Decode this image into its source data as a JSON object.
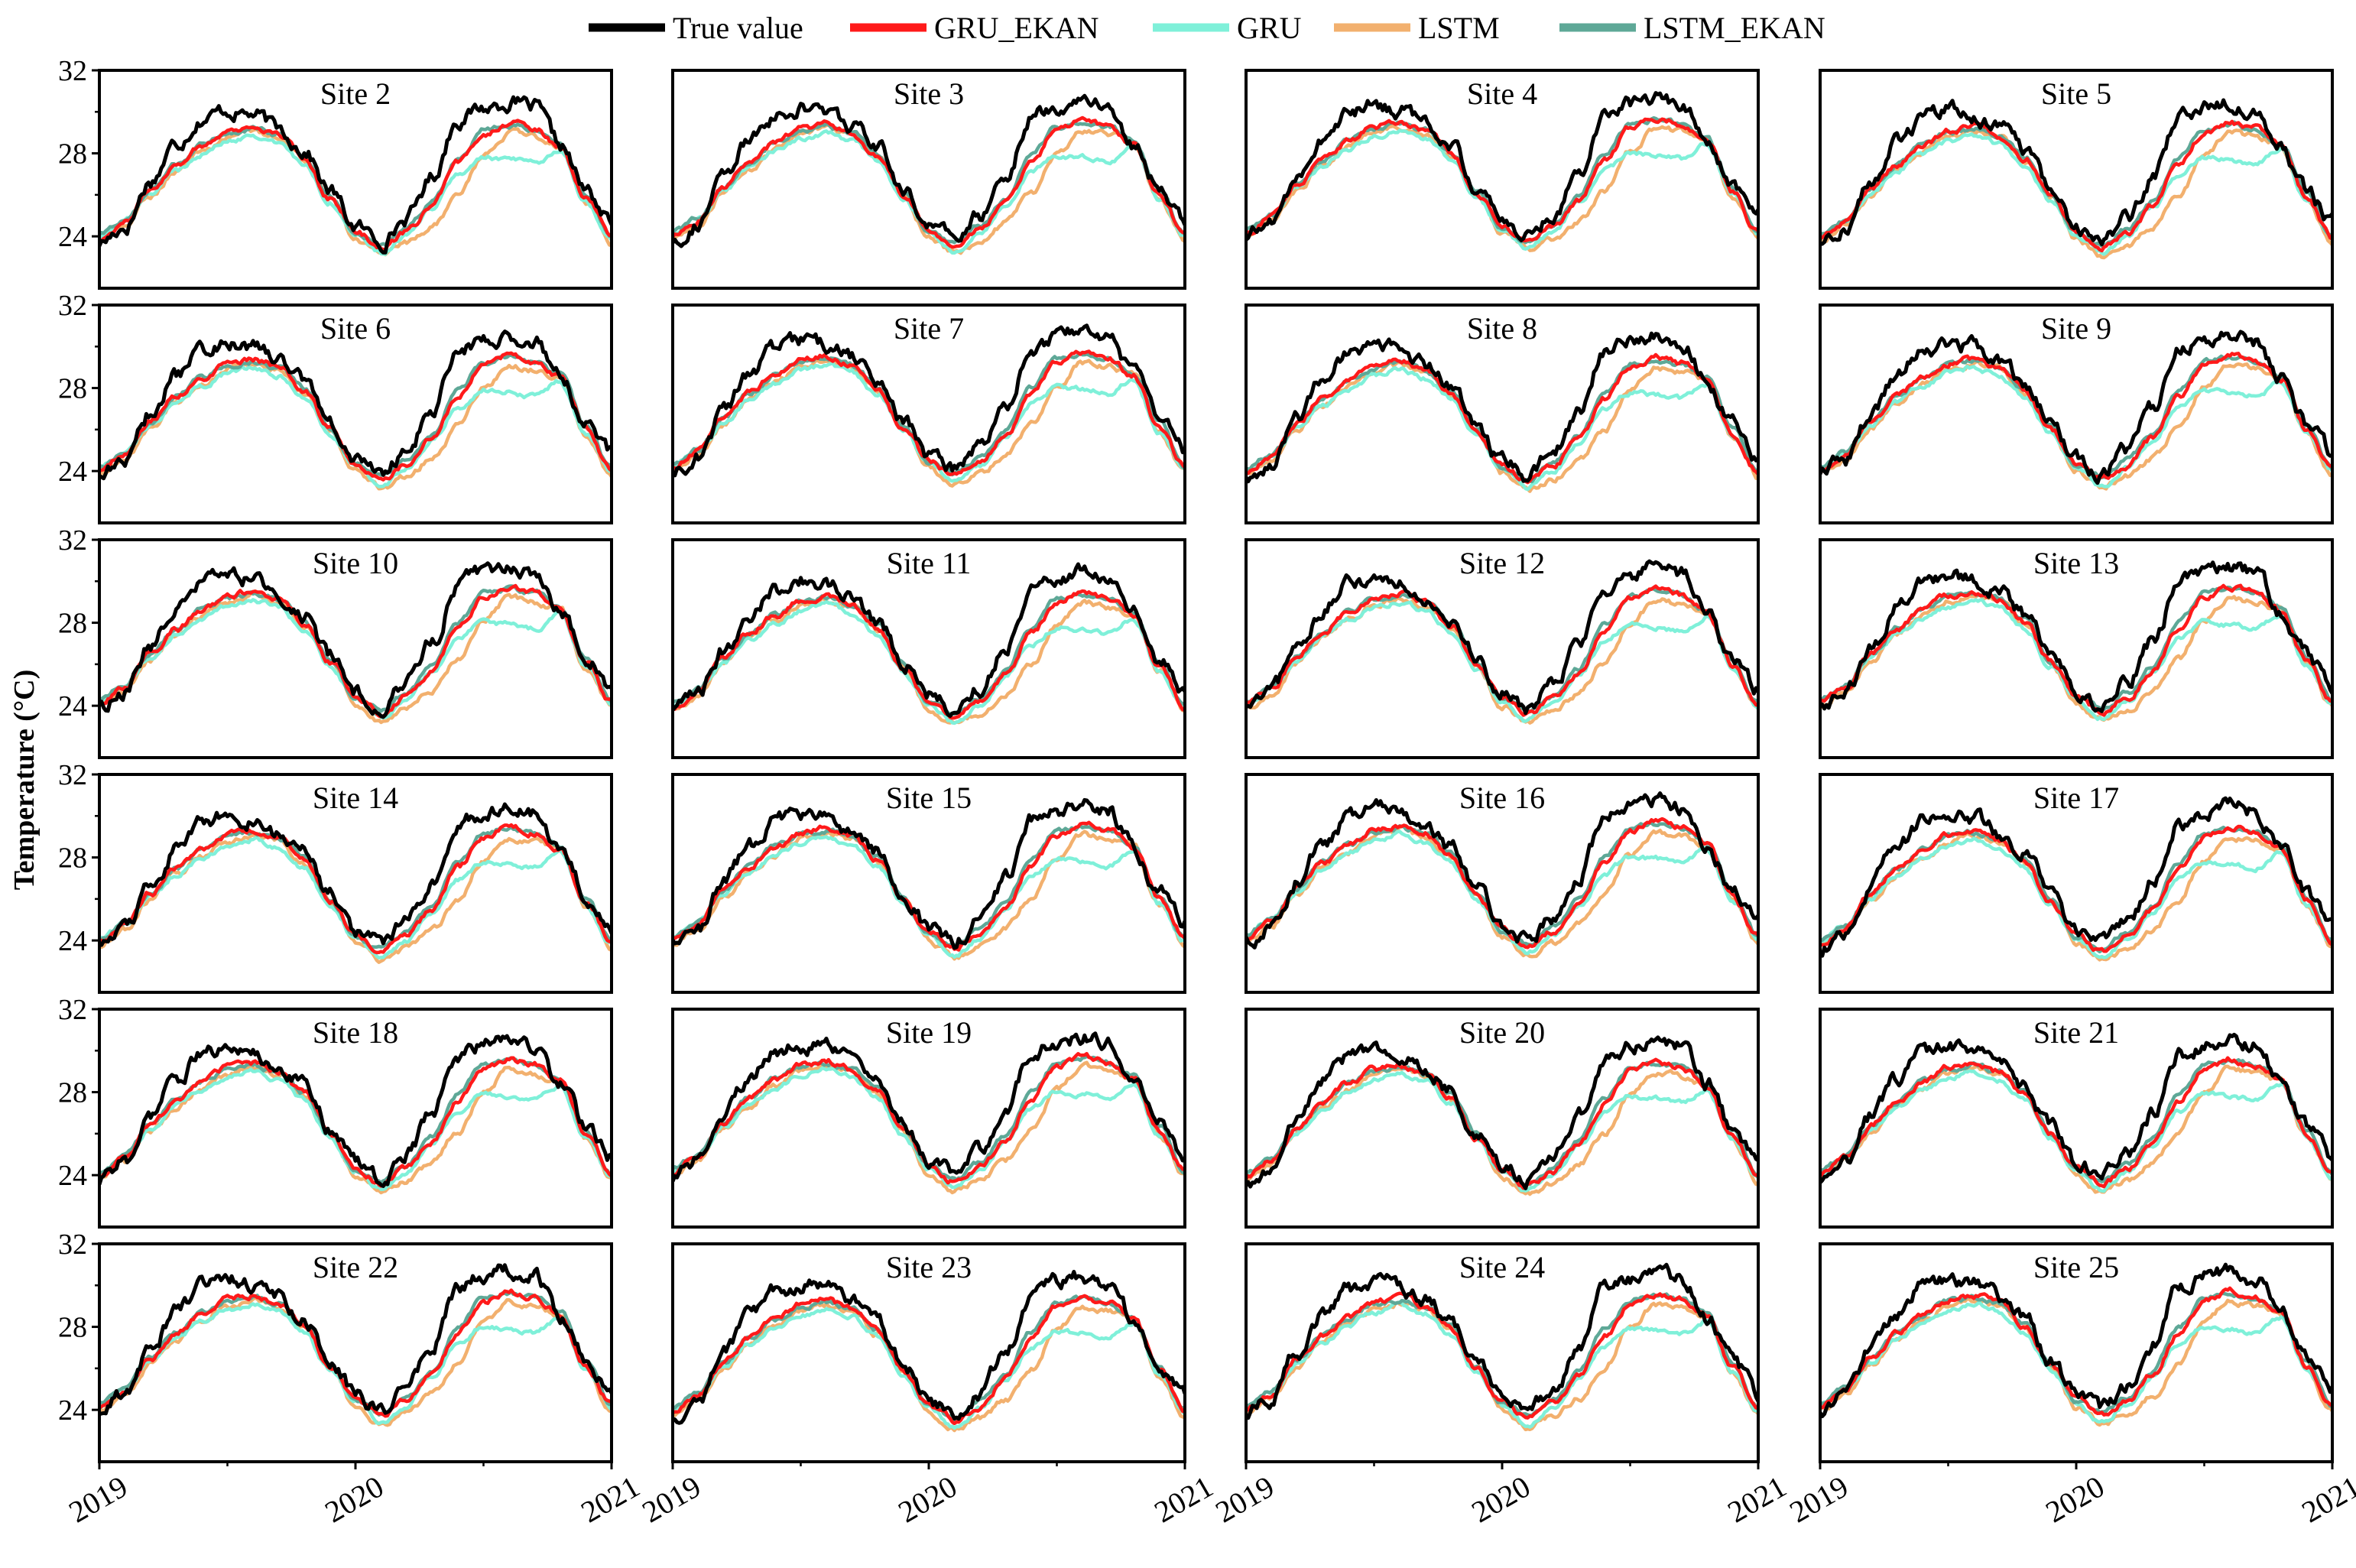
{
  "legend": {
    "entries": [
      {
        "name": "True value",
        "color": "#000000"
      },
      {
        "name": "GRU_EKAN",
        "color": "#ff1a1a"
      },
      {
        "name": "GRU",
        "color": "#7ff0d9"
      },
      {
        "name": "LSTM",
        "color": "#f2b06e"
      },
      {
        "name": "LSTM_EKAN",
        "color": "#5ea897"
      }
    ]
  },
  "chart_data": {
    "type": "line",
    "title": "",
    "xlabel": "",
    "ylabel": "Temperature (°C)",
    "ylabel_prefix": "Temperature (",
    "ylabel_unit": "°C",
    "ylabel_suffix": ")",
    "xlim": [
      2019,
      2021
    ],
    "ylim": [
      21.5,
      32
    ],
    "y_ticks": [
      24,
      28,
      32
    ],
    "x_ticks": [
      2019,
      2020,
      2021
    ],
    "x_tick_labels": [
      "2019",
      "2020",
      "2021"
    ],
    "panel_prefix": "Site",
    "sites": [
      "2",
      "3",
      "4",
      "5",
      "6",
      "7",
      "8",
      "9",
      "10",
      "11",
      "12",
      "13",
      "14",
      "15",
      "16",
      "17",
      "18",
      "19",
      "20",
      "21",
      "22",
      "23",
      "24",
      "25"
    ],
    "grid": false,
    "legend_position": "top-center",
    "series": [
      {
        "name": "True value",
        "color": "#000000",
        "x": [
          2019.0,
          2019.1,
          2019.2,
          2019.3,
          2019.4,
          2019.5,
          2019.6,
          2019.7,
          2019.8,
          2019.9,
          2020.0,
          2020.1,
          2020.2,
          2020.3,
          2020.4,
          2020.5,
          2020.6,
          2020.7,
          2020.8,
          2020.9,
          2021.0
        ],
        "values": [
          23.8,
          24.6,
          26.8,
          28.6,
          29.8,
          30.2,
          30.0,
          29.3,
          28.3,
          26.3,
          24.6,
          23.9,
          25.0,
          27.0,
          29.8,
          30.3,
          30.6,
          30.3,
          28.5,
          26.3,
          24.8
        ]
      },
      {
        "name": "GRU_EKAN",
        "color": "#ff1a1a",
        "x": [
          2019.0,
          2019.1,
          2019.2,
          2019.3,
          2019.4,
          2019.5,
          2019.6,
          2019.7,
          2019.8,
          2019.9,
          2020.0,
          2020.1,
          2020.2,
          2020.3,
          2020.4,
          2020.5,
          2020.6,
          2020.7,
          2020.8,
          2020.9,
          2021.0
        ],
        "values": [
          24.0,
          24.8,
          26.4,
          27.6,
          28.5,
          29.2,
          29.4,
          29.0,
          27.9,
          26.0,
          24.4,
          23.6,
          24.3,
          25.6,
          27.6,
          29.1,
          29.6,
          29.3,
          28.5,
          26.0,
          24.1
        ]
      },
      {
        "name": "GRU",
        "color": "#7ff0d9",
        "x": [
          2019.0,
          2019.1,
          2019.2,
          2019.3,
          2019.4,
          2019.5,
          2019.6,
          2019.7,
          2019.8,
          2019.9,
          2020.0,
          2020.1,
          2020.2,
          2020.3,
          2020.4,
          2020.5,
          2020.6,
          2020.7,
          2020.8,
          2020.9,
          2021.0
        ],
        "values": [
          24.1,
          24.9,
          26.2,
          27.3,
          28.1,
          28.7,
          29.0,
          28.6,
          27.6,
          25.8,
          24.2,
          23.3,
          24.1,
          25.5,
          27.1,
          27.9,
          27.8,
          27.6,
          28.3,
          25.8,
          24.0
        ]
      },
      {
        "name": "LSTM",
        "color": "#f2b06e",
        "x": [
          2019.0,
          2019.1,
          2019.2,
          2019.3,
          2019.4,
          2019.5,
          2019.6,
          2019.7,
          2019.8,
          2019.9,
          2020.0,
          2020.1,
          2020.2,
          2020.3,
          2020.4,
          2020.5,
          2020.6,
          2020.7,
          2020.8,
          2020.9,
          2021.0
        ],
        "values": [
          23.9,
          24.6,
          26.1,
          27.3,
          28.2,
          28.9,
          29.2,
          28.9,
          27.8,
          26.0,
          24.0,
          23.2,
          23.7,
          24.6,
          26.1,
          28.0,
          29.1,
          28.9,
          28.5,
          25.8,
          23.8
        ]
      },
      {
        "name": "LSTM_EKAN",
        "color": "#5ea897",
        "x": [
          2019.0,
          2019.1,
          2019.2,
          2019.3,
          2019.4,
          2019.5,
          2019.6,
          2019.7,
          2019.8,
          2019.9,
          2020.0,
          2020.1,
          2020.2,
          2020.3,
          2020.4,
          2020.5,
          2020.6,
          2020.7,
          2020.8,
          2020.9,
          2021.0
        ],
        "values": [
          24.2,
          24.9,
          26.4,
          27.6,
          28.5,
          29.1,
          29.3,
          29.0,
          28.0,
          26.1,
          24.3,
          23.7,
          24.5,
          25.8,
          27.9,
          29.3,
          29.5,
          29.3,
          28.6,
          26.2,
          24.1
        ]
      }
    ]
  }
}
